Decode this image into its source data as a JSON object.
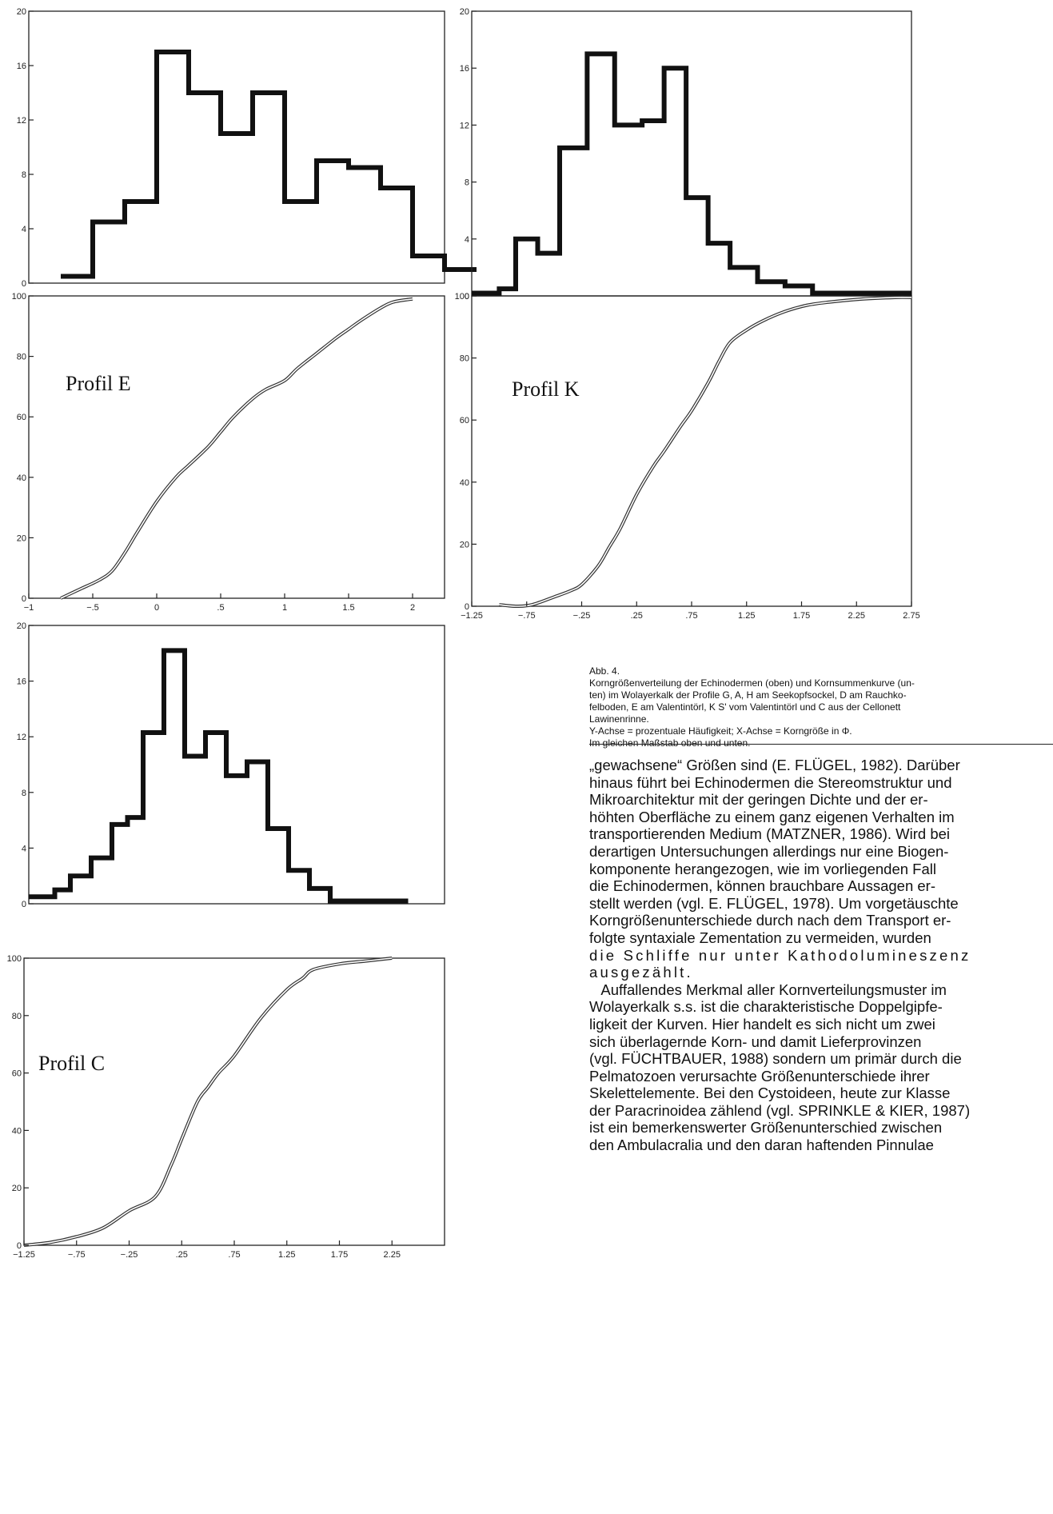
{
  "charts": {
    "histE": {
      "type": "histogram",
      "xlim": [
        -1,
        2.25
      ],
      "ylim": [
        0,
        20
      ],
      "yticks": [
        0,
        4,
        8,
        12,
        16,
        20
      ],
      "xticks": [],
      "xticklabels": [],
      "bins": [
        [
          -0.75,
          -0.5,
          0.5
        ],
        [
          -0.5,
          -0.25,
          4.5
        ],
        [
          -0.25,
          0,
          6
        ],
        [
          0,
          0.25,
          17
        ],
        [
          0.25,
          0.5,
          14
        ],
        [
          0.5,
          0.75,
          11
        ],
        [
          0.75,
          1,
          14
        ],
        [
          1,
          1.25,
          6
        ],
        [
          1.25,
          1.5,
          9
        ],
        [
          1.5,
          1.75,
          8.5
        ],
        [
          1.75,
          2,
          7
        ],
        [
          2,
          2.25,
          2
        ],
        [
          2.25,
          2.5,
          1
        ]
      ]
    },
    "cumE": {
      "type": "line",
      "label": "Profil E",
      "xlim": [
        -1,
        2.25
      ],
      "ylim": [
        0,
        100
      ],
      "yticks": [
        0,
        20,
        40,
        60,
        80,
        100
      ],
      "xticks": [
        -1,
        -0.5,
        0,
        0.5,
        1,
        1.5,
        2
      ],
      "xticklabels": [
        "−1",
        "−.5",
        "0",
        ".5",
        "1",
        "1.5",
        "2"
      ],
      "x": [
        -0.75,
        -0.6,
        -0.45,
        -0.35,
        -0.25,
        -0.15,
        0,
        0.15,
        0.25,
        0.4,
        0.5,
        0.6,
        0.75,
        0.85,
        1,
        1.1,
        1.25,
        1.4,
        1.5,
        1.6,
        1.75,
        1.85,
        2
      ],
      "y": [
        0,
        3,
        6,
        9,
        15,
        22,
        32,
        40,
        44,
        50,
        55,
        60,
        66,
        69,
        72,
        76,
        81,
        86,
        89,
        92,
        96,
        98,
        99
      ]
    },
    "histC": {
      "type": "histogram",
      "xlim": [
        -1.25,
        2.75
      ],
      "ylim": [
        0,
        20
      ],
      "yticks": [
        0,
        4,
        8,
        12,
        16,
        20
      ],
      "xticks": [],
      "xticklabels": [],
      "bins": [
        [
          -1.25,
          -1,
          0.5
        ],
        [
          -1,
          -0.85,
          1
        ],
        [
          -0.85,
          -0.65,
          2
        ],
        [
          -0.65,
          -0.45,
          3.3
        ],
        [
          -0.45,
          -0.3,
          5.7
        ],
        [
          -0.3,
          -0.15,
          6.2
        ],
        [
          -0.15,
          0.05,
          12.3
        ],
        [
          0.05,
          0.25,
          18.2
        ],
        [
          0.25,
          0.45,
          10.6
        ],
        [
          0.45,
          0.65,
          12.3
        ],
        [
          0.65,
          0.85,
          9.2
        ],
        [
          0.85,
          1.05,
          10.2
        ],
        [
          1.05,
          1.25,
          5.4
        ],
        [
          1.25,
          1.45,
          2.4
        ],
        [
          1.45,
          1.65,
          1.1
        ],
        [
          1.65,
          2.4,
          0.2
        ]
      ]
    },
    "cumC": {
      "type": "line",
      "label": "Profil C",
      "xlim": [
        -1.25,
        2.75
      ],
      "ylim": [
        0,
        100
      ],
      "yticks": [
        0,
        20,
        40,
        60,
        80,
        100
      ],
      "xticks": [
        -1.25,
        -0.75,
        -0.25,
        0.25,
        0.75,
        1.25,
        1.75,
        2.25
      ],
      "xticklabels": [
        "−1.25",
        "−.75",
        "−.25",
        ".25",
        ".75",
        "1.25",
        "1.75",
        "2.25"
      ],
      "x": [
        -1.25,
        -1,
        -0.75,
        -0.5,
        -0.25,
        0,
        0.15,
        0.25,
        0.4,
        0.5,
        0.6,
        0.75,
        1,
        1.25,
        1.4,
        1.5,
        1.75,
        2,
        2.25
      ],
      "y": [
        0,
        1,
        3,
        6,
        12,
        17,
        28,
        37,
        50,
        55,
        60,
        66,
        79,
        89,
        93,
        96,
        98,
        99,
        100
      ]
    },
    "histK": {
      "type": "histogram",
      "xlim": [
        -1.25,
        2.75
      ],
      "ylim": [
        0,
        20
      ],
      "yticks": [
        0,
        4,
        8,
        12,
        16,
        20
      ],
      "xticks": [],
      "xticklabels": [],
      "bins": [
        [
          -1.25,
          -1,
          0.2
        ],
        [
          -1,
          -0.85,
          0.5
        ],
        [
          -0.85,
          -0.65,
          4
        ],
        [
          -0.65,
          -0.45,
          3
        ],
        [
          -0.45,
          -0.2,
          10.4
        ],
        [
          -0.2,
          0.05,
          17
        ],
        [
          0.05,
          0.3,
          12
        ],
        [
          0.3,
          0.5,
          12.3
        ],
        [
          0.5,
          0.7,
          16
        ],
        [
          0.7,
          0.9,
          6.9
        ],
        [
          0.9,
          1.1,
          3.7
        ],
        [
          1.1,
          1.35,
          2
        ],
        [
          1.35,
          1.6,
          1
        ],
        [
          1.6,
          1.85,
          0.7
        ],
        [
          1.85,
          2.75,
          0.2
        ]
      ]
    },
    "cumK": {
      "type": "line",
      "label": "Profil K",
      "xlim": [
        -1.25,
        2.75
      ],
      "ylim": [
        0,
        100
      ],
      "yticks": [
        0,
        20,
        40,
        60,
        80,
        100
      ],
      "xticks": [
        -1.25,
        -0.75,
        -0.25,
        0.25,
        0.75,
        1.25,
        1.75,
        2.25,
        2.75
      ],
      "xticklabels": [
        "−1.25",
        "−.75",
        "−.25",
        ".25",
        ".75",
        "1.25",
        "1.75",
        "2.25",
        "2.75"
      ],
      "x": [
        -1,
        -0.85,
        -0.7,
        -0.5,
        -0.35,
        -0.25,
        -0.1,
        0,
        0.1,
        0.25,
        0.4,
        0.5,
        0.65,
        0.75,
        0.9,
        1,
        1.1,
        1.25,
        1.4,
        1.6,
        1.8,
        2,
        2.3,
        2.6,
        2.75
      ],
      "y": [
        0.5,
        0,
        0.5,
        3,
        5,
        7,
        13,
        19,
        25,
        36,
        45,
        50,
        58,
        63,
        72,
        79,
        85,
        89,
        92,
        95,
        97,
        98,
        99,
        99.5,
        99.5
      ]
    }
  },
  "caption": {
    "title": "Abb. 4.",
    "lines": [
      "Korngrößenverteilung der Echinodermen (oben) und Kornsummenkurve (un-",
      "ten) im Wolayerkalk der Profile G, A, H am Seekopfsockel, D am Rauchko-",
      "felboden, E am Valentintörl, K S' vom Valentintörl und C aus der Cellonett",
      "Lawinenrinne.",
      "Y-Achse = prozentuale Häufigkeit; X-Achse = Korngröße in Φ.",
      "Im gleichen Maßstab oben und unten."
    ]
  },
  "body_lines": [
    "„gewachsene“ Größen sind (E. FLÜGEL, 1982). Darüber",
    "hinaus führt bei Echinodermen die Stereomstruktur und",
    "Mikroarchitektur mit der geringen Dichte und der er-",
    "höhten Oberfläche zu einem ganz eigenen Verhalten im",
    "transportierenden Medium (MATZNER, 1986). Wird bei",
    "derartigen Untersuchungen allerdings nur eine Biogen-",
    "komponente herangezogen, wie im vorliegenden Fall",
    "die Echinodermen, können brauchbare Aussagen er-",
    "stellt werden (vgl. E. FLÜGEL, 1978). Um vorgetäuschte",
    "Korngrößenunterschiede durch nach dem Transport er-",
    "folgte syntaxiale Zementation zu vermeiden, wurden",
    "die Schliffe nur unter Kathodolumineszenz",
    "ausgezählt.",
    "   Auffallendes Merkmal aller Kornverteilungsmuster im",
    "Wolayerkalk s.s. ist die charakteristische Doppelgipfe-",
    "ligkeit der Kurven. Hier handelt es sich nicht um zwei",
    "sich überlagernde Korn- und damit Lieferprovinzen",
    "(vgl. FÜCHTBAUER, 1988) sondern um primär durch die",
    "Pelmatozoen verursachte Größenunterschiede ihrer",
    "Skelettelemente. Bei den Cystoideen, heute zur Klasse",
    "der Paracrinoidea zählend (vgl. SPRINKLE & KIER, 1987)",
    "ist ein bemerkenswerter Größenunterschied zwischen",
    "den Ambulacralia und den daran haftenden Pinnulae"
  ]
}
